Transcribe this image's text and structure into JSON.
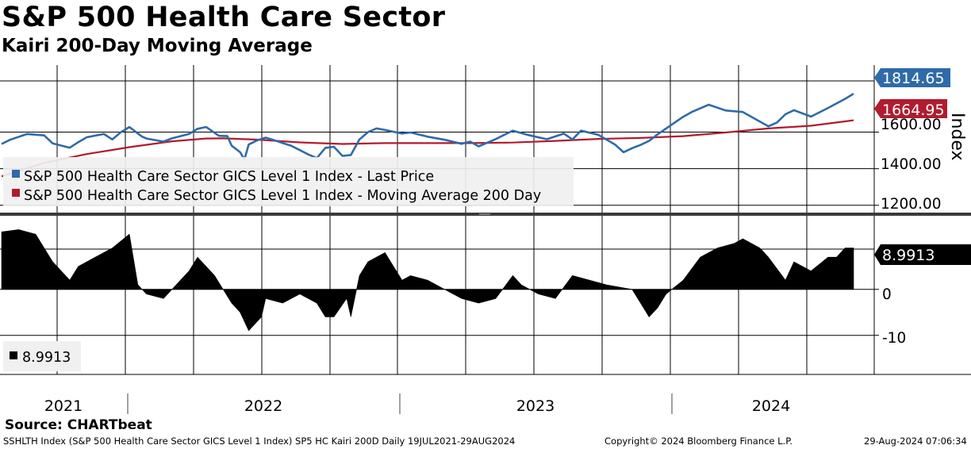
{
  "title": "S&P 500 Health Care Sector",
  "subtitle": "Kairi 200-Day Moving Average",
  "source": "Source: CHARTbeat",
  "footer": {
    "ticker_info": "SSHLTH Index (S&P 500 Health Care Sector GICS Level 1 Index) SP5 HC Kairi 200D  Daily 19JUL2021-29AUG2024",
    "copyright": "Copyright© 2024 Bloomberg Finance L.P.",
    "timestamp": "29-Aug-2024 07:06:34"
  },
  "colors": {
    "price": "#2e6ba8",
    "ma": "#b01c2e",
    "kairi": "#000000",
    "grid": "#000000",
    "legend_bg": "#f0f0f0"
  },
  "chart_data": [
    {
      "type": "line",
      "panel": "upper",
      "title": "S&P 500 Health Care Sector",
      "ylabel": "Index",
      "ylim": [
        1160,
        1880
      ],
      "y_ticks": [
        1200,
        1400,
        1600
      ],
      "y_tick_labels": [
        "1200.00",
        "1400.00",
        "1600.00"
      ],
      "x_labels": [
        "2021",
        "2022",
        "2023",
        "2024"
      ],
      "legend": [
        "S&P 500 Health Care Sector GICS Level 1 Index - Last Price",
        "S&P 500 Health Care Sector GICS Level 1 Index - Moving Average 200 Day"
      ],
      "last_labels": {
        "price": "1814.65",
        "ma": "1664.95"
      },
      "series": [
        {
          "name": "S&P 500 Health Care Sector GICS Level 1 Index - Last Price",
          "t": [
            0,
            0.01,
            0.03,
            0.05,
            0.06,
            0.08,
            0.09,
            0.1,
            0.12,
            0.13,
            0.14,
            0.15,
            0.165,
            0.17,
            0.19,
            0.2,
            0.22,
            0.23,
            0.24,
            0.255,
            0.265,
            0.27,
            0.28,
            0.285,
            0.29,
            0.3,
            0.31,
            0.32,
            0.33,
            0.34,
            0.36,
            0.37,
            0.38,
            0.39,
            0.4,
            0.41,
            0.42,
            0.43,
            0.44,
            0.45,
            0.47,
            0.48,
            0.5,
            0.52,
            0.54,
            0.55,
            0.56,
            0.58,
            0.6,
            0.62,
            0.64,
            0.66,
            0.67,
            0.68,
            0.7,
            0.72,
            0.73,
            0.74,
            0.75,
            0.76,
            0.77,
            0.8,
            0.81,
            0.83,
            0.85,
            0.87,
            0.9,
            0.91,
            0.92,
            0.93,
            0.95,
            0.97,
            0.99,
            1.0
          ],
          "values": [
            1535,
            1558,
            1590,
            1582,
            1538,
            1515,
            1545,
            1572,
            1590,
            1560,
            1600,
            1628,
            1575,
            1565,
            1548,
            1566,
            1590,
            1618,
            1628,
            1580,
            1578,
            1526,
            1490,
            1450,
            1532,
            1555,
            1570,
            1556,
            1540,
            1525,
            1478,
            1458,
            1514,
            1520,
            1470,
            1475,
            1560,
            1600,
            1620,
            1612,
            1592,
            1598,
            1575,
            1558,
            1536,
            1548,
            1522,
            1562,
            1608,
            1582,
            1561,
            1592,
            1560,
            1608,
            1586,
            1532,
            1490,
            1512,
            1530,
            1552,
            1588,
            1684,
            1710,
            1750,
            1718,
            1710,
            1632,
            1652,
            1698,
            1720,
            1685,
            1732,
            1782,
            1810
          ]
        },
        {
          "name": "S&P 500 Health Care Sector GICS Level 1 Index - Moving Average 200 Day",
          "t": [
            0,
            0.05,
            0.1,
            0.15,
            0.2,
            0.24,
            0.26,
            0.3,
            0.35,
            0.4,
            0.45,
            0.5,
            0.55,
            0.6,
            0.65,
            0.7,
            0.75,
            0.8,
            0.85,
            0.9,
            0.95,
            1.0
          ],
          "values": [
            1358,
            1432,
            1480,
            1518,
            1550,
            1565,
            1566,
            1559,
            1544,
            1535,
            1540,
            1540,
            1540,
            1543,
            1552,
            1563,
            1568,
            1578,
            1598,
            1620,
            1635,
            1665
          ]
        }
      ]
    },
    {
      "type": "area",
      "panel": "lower",
      "ylim": [
        -18.5,
        16
      ],
      "y_ticks": [
        0,
        -10
      ],
      "y_tick_labels": [
        "0",
        "-10"
      ],
      "last_label": "8.9913",
      "legend": [
        "8.9913"
      ],
      "series": [
        {
          "name": "Kairi 200-Day",
          "t": [
            0,
            0.02,
            0.04,
            0.06,
            0.08,
            0.09,
            0.11,
            0.13,
            0.15,
            0.16,
            0.17,
            0.19,
            0.21,
            0.22,
            0.23,
            0.25,
            0.27,
            0.28,
            0.29,
            0.305,
            0.31,
            0.33,
            0.35,
            0.37,
            0.38,
            0.39,
            0.405,
            0.41,
            0.42,
            0.43,
            0.45,
            0.46,
            0.47,
            0.48,
            0.5,
            0.52,
            0.54,
            0.56,
            0.58,
            0.6,
            0.61,
            0.63,
            0.65,
            0.67,
            0.69,
            0.71,
            0.74,
            0.75,
            0.76,
            0.77,
            0.78,
            0.8,
            0.82,
            0.84,
            0.86,
            0.87,
            0.89,
            0.9,
            0.92,
            0.93,
            0.95,
            0.97,
            0.98,
            0.99,
            1.0
          ],
          "values": [
            12.5,
            13,
            12,
            6,
            2,
            5,
            7,
            9,
            12,
            1,
            -1,
            -2,
            2,
            4,
            7,
            3,
            -3,
            -5,
            -9,
            -6,
            -2,
            -3,
            -1,
            -3,
            -6,
            -6,
            -2,
            -6,
            3,
            6,
            8,
            5,
            2,
            3,
            2,
            0,
            -2,
            -3,
            -2,
            3,
            1,
            -1,
            -2,
            3,
            2,
            1,
            0,
            -3,
            -6,
            -4,
            -1,
            2,
            7,
            9,
            10,
            11,
            9,
            7,
            2,
            6,
            4,
            7,
            7,
            9,
            9
          ]
        }
      ]
    }
  ]
}
